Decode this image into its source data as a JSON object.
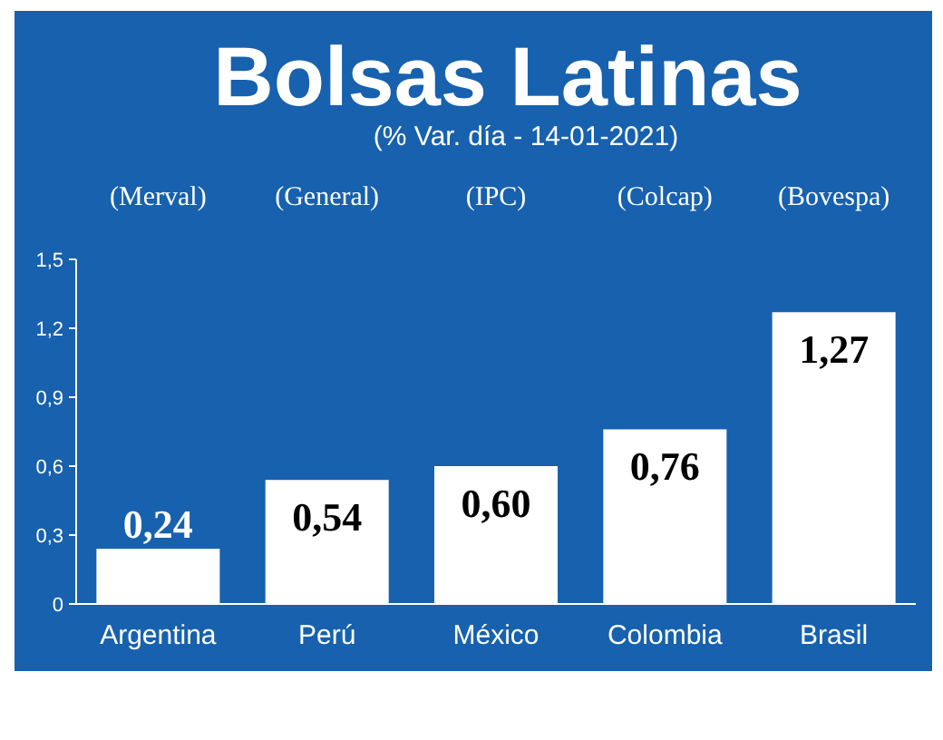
{
  "chart_data": {
    "type": "bar",
    "title": "Bolsas Latinas",
    "subtitle": "(% Var. día - 14-01-2021)",
    "categories": [
      "Argentina",
      "Perú",
      "México",
      "Colombia",
      "Brasil"
    ],
    "values": [
      0.24,
      0.54,
      0.6,
      0.76,
      1.27
    ],
    "value_labels": [
      "0,24",
      "0,54",
      "0,60",
      "0,76",
      "1,27"
    ],
    "color": "#ffffff",
    "ylim": [
      0,
      1.5
    ],
    "yticks": [
      0,
      {
        "value": 0.3,
        "label": "0,3"
      },
      {
        "value": 0.6,
        "label": "0,6"
      },
      {
        "value": 0.9,
        "label": "0,9"
      },
      {
        "value": 1.2,
        "label": "1,2"
      },
      {
        "value": 1.5,
        "label": "1,5"
      }
    ],
    "annotations": [
      "(Merval)",
      "(General)",
      "(IPC)",
      "(Colcap)",
      "(Bovespa)"
    ],
    "grid": false
  }
}
